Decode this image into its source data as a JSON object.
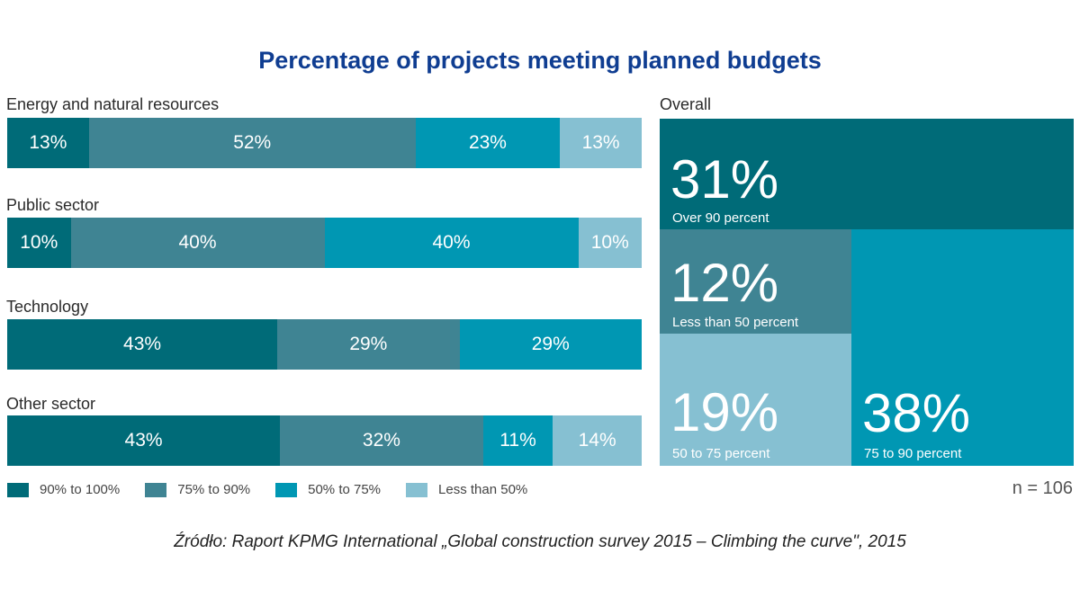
{
  "colors": {
    "c90_100": "#006b78",
    "c75_90": "#3f8493",
    "c50_75": "#0097b3",
    "cLess50": "#86c0d2"
  },
  "chart_data": [
    {
      "type": "bar",
      "orientation": "horizontal-stacked",
      "title": "Percentage of projects meeting planned budgets",
      "categories": [
        "Energy and natural resources",
        "Public sector",
        "Technology",
        "Other sector"
      ],
      "series": [
        {
          "name": "90% to 100%",
          "color_key": "c90_100",
          "values": [
            13,
            10,
            43,
            43
          ],
          "labels": [
            "13%",
            "10%",
            "43%",
            "43%"
          ]
        },
        {
          "name": "75% to 90%",
          "color_key": "c75_90",
          "values": [
            52,
            40,
            29,
            32
          ],
          "labels": [
            "52%",
            "40%",
            "29%",
            "32%"
          ]
        },
        {
          "name": "50% to 75%",
          "color_key": "c50_75",
          "values": [
            23,
            40,
            29,
            11
          ],
          "labels": [
            "23%",
            "40%",
            "29%",
            "11%"
          ]
        },
        {
          "name": "Less than 50%",
          "color_key": "cLess50",
          "values": [
            13,
            10,
            0,
            14
          ],
          "labels": [
            "13%",
            "10%",
            "",
            "14%"
          ]
        }
      ]
    },
    {
      "type": "treemap",
      "title": "Overall",
      "items": [
        {
          "pct": "31%",
          "value": 31,
          "caption": "Over 90 percent",
          "color_key": "c90_100"
        },
        {
          "pct": "12%",
          "value": 12,
          "caption": "Less than 50 percent",
          "color_key": "c75_90"
        },
        {
          "pct": "19%",
          "value": 19,
          "caption": "50 to 75 percent",
          "color_key": "cLess50"
        },
        {
          "pct": "38%",
          "value": 38,
          "caption": "75 to 90 percent",
          "color_key": "c50_75"
        }
      ],
      "n": "n = 106"
    }
  ],
  "source": "Źródło: Raport KPMG International „Global construction survey 2015 – Climbing the curve\", 2015"
}
